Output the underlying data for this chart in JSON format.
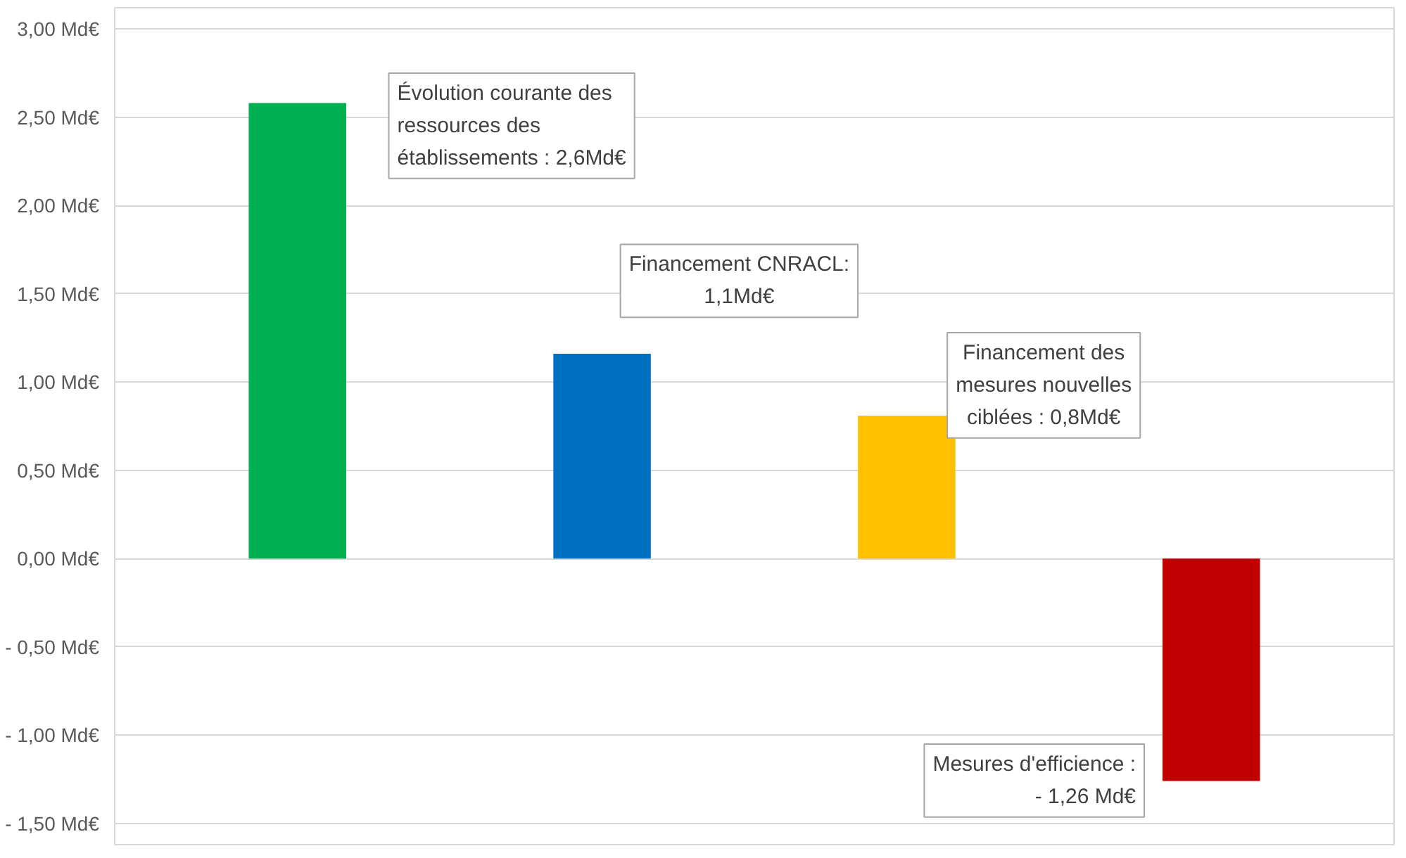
{
  "chart_data": {
    "type": "bar",
    "categories": [
      null,
      null,
      null,
      null
    ],
    "values": [
      2.58,
      1.16,
      0.81,
      -1.26
    ],
    "colors": [
      "#00b050",
      "#0070c0",
      "#ffc000",
      "#c00000"
    ],
    "ylim": [
      -1.62,
      3.12
    ],
    "yticks": [
      {
        "value": -1.5,
        "label": "- 1,50 Md€"
      },
      {
        "value": -1.0,
        "label": "- 1,00 Md€"
      },
      {
        "value": -0.5,
        "label": "- 0,50 Md€"
      },
      {
        "value": 0,
        "label": "0,00 Md€"
      },
      {
        "value": 0.5,
        "label": "0,50 Md€"
      },
      {
        "value": 1.0,
        "label": "1,00 Md€"
      },
      {
        "value": 1.5,
        "label": "1,50 Md€"
      },
      {
        "value": 2.0,
        "label": "2,00 Md€"
      },
      {
        "value": 2.5,
        "label": "2,50 Md€"
      },
      {
        "value": 3.0,
        "label": "3,00 Md€"
      }
    ],
    "grid": "y",
    "annotations": [
      "Évolution courante des\nressources des\nétablissements : 2,6Md€",
      "Financement CNRACL:\n1,1Md€",
      "Financement des\nmesures nouvelles\nciblées : 0,8Md€",
      "Mesures d'efficience :\n- 1,26 Md€"
    ]
  }
}
